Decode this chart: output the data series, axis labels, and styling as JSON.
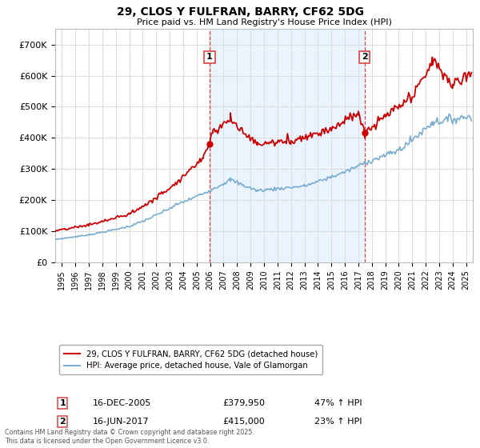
{
  "title": "29, CLOS Y FULFRAN, BARRY, CF62 5DG",
  "subtitle": "Price paid vs. HM Land Registry's House Price Index (HPI)",
  "legend_label_red": "29, CLOS Y FULFRAN, BARRY, CF62 5DG (detached house)",
  "legend_label_blue": "HPI: Average price, detached house, Vale of Glamorgan",
  "footnote": "Contains HM Land Registry data © Crown copyright and database right 2025.\nThis data is licensed under the Open Government Licence v3.0.",
  "sale1_label": "1",
  "sale1_date": "16-DEC-2005",
  "sale1_price": "£379,950",
  "sale1_hpi": "47% ↑ HPI",
  "sale1_x": 2005.96,
  "sale1_y": 379950,
  "sale2_label": "2",
  "sale2_date": "16-JUN-2017",
  "sale2_price": "£415,000",
  "sale2_hpi": "23% ↑ HPI",
  "sale2_x": 2017.46,
  "sale2_y": 415000,
  "ylim": [
    0,
    750000
  ],
  "xlim_start": 1994.5,
  "xlim_end": 2025.5,
  "yticks": [
    0,
    100000,
    200000,
    300000,
    400000,
    500000,
    600000,
    700000
  ],
  "ytick_labels": [
    "£0",
    "£100K",
    "£200K",
    "£300K",
    "£400K",
    "£500K",
    "£600K",
    "£700K"
  ],
  "xticks": [
    1995,
    1996,
    1997,
    1998,
    1999,
    2000,
    2001,
    2002,
    2003,
    2004,
    2005,
    2006,
    2007,
    2008,
    2009,
    2010,
    2011,
    2012,
    2013,
    2014,
    2015,
    2016,
    2017,
    2018,
    2019,
    2020,
    2021,
    2022,
    2023,
    2024,
    2025
  ],
  "red_color": "#cc0000",
  "blue_color": "#7aadcf",
  "shade_color": "#ddeeff",
  "vline_color": "#dd4444",
  "grid_color": "#dddddd",
  "bg_color": "#ffffff"
}
